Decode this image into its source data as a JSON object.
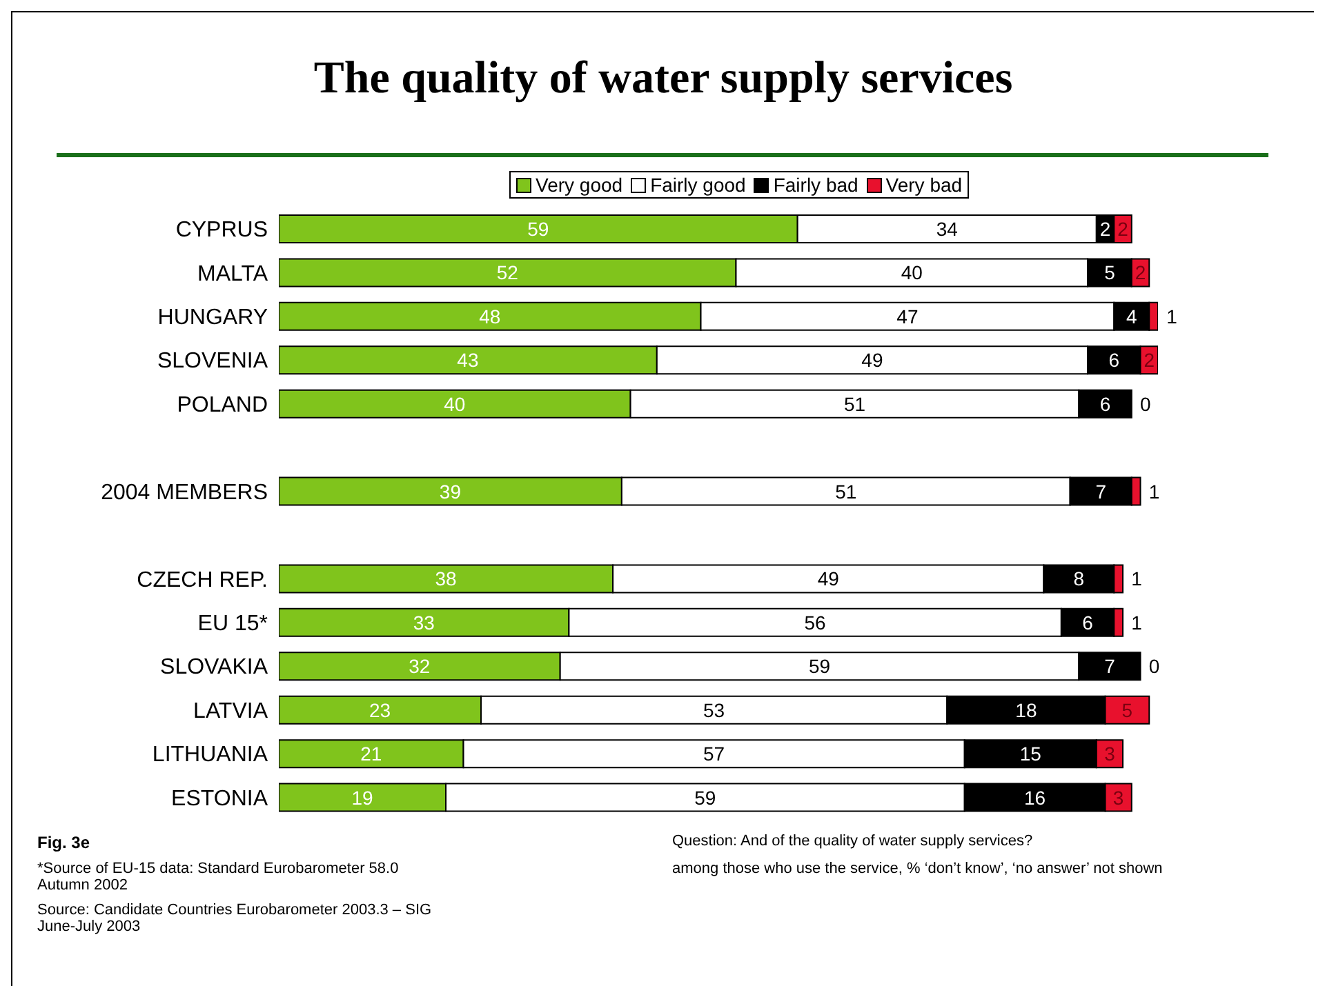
{
  "chart_data": {
    "type": "bar",
    "orientation": "horizontal",
    "stacked": true,
    "title": "The quality of water supply services",
    "categories": [
      "CYPRUS",
      "MALTA",
      "HUNGARY",
      "SLOVENIA",
      "POLAND",
      null,
      "2004 MEMBERS",
      null,
      "CZECH REP.",
      "EU 15*",
      "SLOVAKIA",
      "LATVIA",
      "LITHUANIA",
      "ESTONIA"
    ],
    "series": [
      {
        "name": "Very good",
        "color": "#80c41c",
        "values": [
          59,
          52,
          48,
          43,
          40,
          null,
          39,
          null,
          38,
          33,
          32,
          23,
          21,
          19
        ]
      },
      {
        "name": "Fairly good",
        "color": "#ffffff",
        "values": [
          34,
          40,
          47,
          49,
          51,
          null,
          51,
          null,
          49,
          56,
          59,
          53,
          57,
          59
        ]
      },
      {
        "name": "Fairly bad",
        "color": "#000000",
        "values": [
          2,
          5,
          4,
          6,
          6,
          null,
          7,
          null,
          8,
          6,
          7,
          18,
          15,
          16
        ]
      },
      {
        "name": "Very bad",
        "color": "#e8112d",
        "values": [
          2,
          2,
          1,
          2,
          0,
          null,
          1,
          null,
          1,
          1,
          0,
          5,
          3,
          3
        ]
      }
    ],
    "xlim": [
      0,
      100
    ],
    "tick_labels": "y",
    "data_labels": true,
    "legend": "top",
    "grid": false,
    "annotations": [
      "Fig. 3e",
      "Question: And of the quality of water supply services?",
      "*Source of EU-15 data: Standard Eurobarometer 58.0 Autumn 2002",
      "among those who use the service, % ‘don’t know’, ‘no answer’ not shown",
      "Source: Candidate Countries Eurobarometer 2003.3 – SIG June-July 2003"
    ]
  }
}
